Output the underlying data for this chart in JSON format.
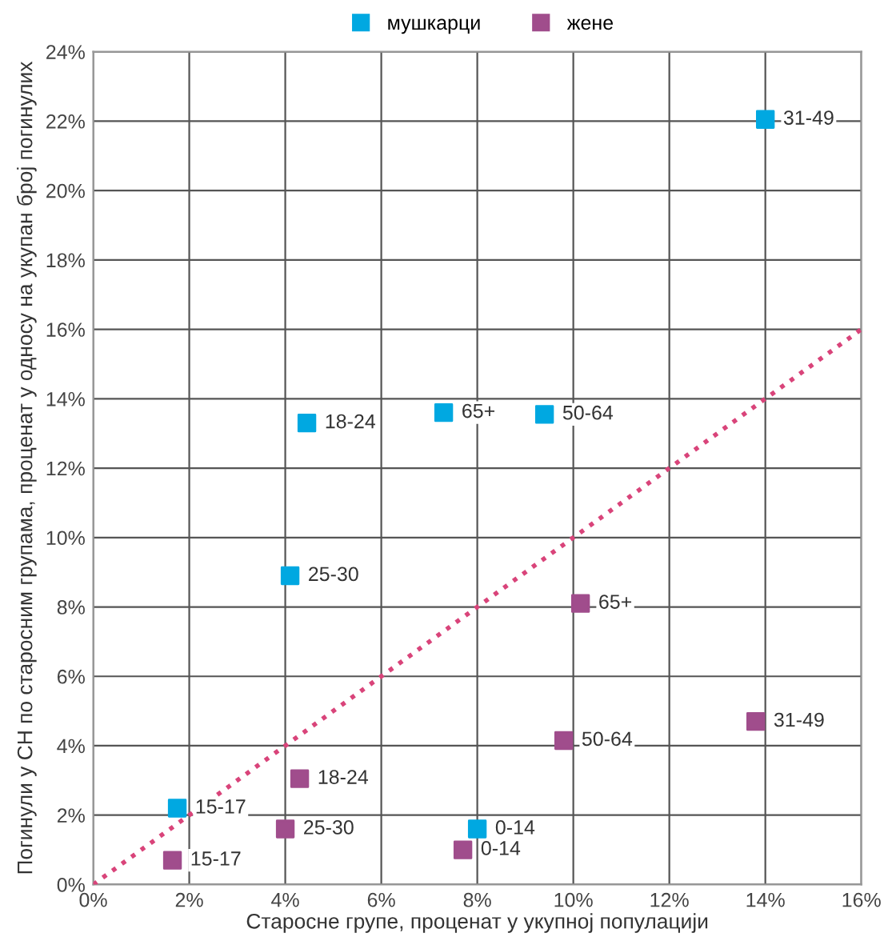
{
  "chart_data": {
    "type": "scatter",
    "xlabel": "Старосне групе, проценат у укупној популацији",
    "ylabel": "Погинули у СН по старосним групама, проценат у односу на укупан број погинулих",
    "series": [
      {
        "name": "мушкарци",
        "color": "#00a8e1",
        "marker": "square",
        "x": [
          1.75,
          4.1,
          4.45,
          7.3,
          9.4,
          14.0,
          8.0
        ],
        "values": [
          2.2,
          8.9,
          13.3,
          13.6,
          13.55,
          22.05,
          1.6
        ]
      },
      {
        "name": "жене",
        "color": "#a04d8c",
        "marker": "square",
        "x": [
          1.65,
          4.0,
          4.3,
          10.15,
          9.8,
          13.8,
          7.7
        ],
        "values": [
          0.7,
          1.6,
          3.05,
          8.1,
          4.15,
          4.7,
          1.0
        ]
      },
      {
        "type": "line",
        "color": "#d9447a",
        "line_style": "dotted",
        "marker": "none",
        "x": [
          0,
          16
        ],
        "values": [
          0,
          16
        ]
      }
    ],
    "annotations": [
      {
        "text": "15-17",
        "x": 1.75,
        "y": 2.2
      },
      {
        "text": "25-30",
        "x": 4.1,
        "y": 8.9
      },
      {
        "text": "18-24",
        "x": 4.45,
        "y": 13.3
      },
      {
        "text": "65+",
        "x": 7.3,
        "y": 13.6
      },
      {
        "text": "50-64",
        "x": 9.4,
        "y": 13.55
      },
      {
        "text": "31-49",
        "x": 14.0,
        "y": 22.05
      },
      {
        "text": "0-14",
        "x": 8.0,
        "y": 1.6
      },
      {
        "text": "15-17",
        "x": 1.65,
        "y": 0.7
      },
      {
        "text": "25-30",
        "x": 4.0,
        "y": 1.6
      },
      {
        "text": "18-24",
        "x": 4.3,
        "y": 3.05
      },
      {
        "text": "65+",
        "x": 10.15,
        "y": 8.1
      },
      {
        "text": "50-64",
        "x": 9.8,
        "y": 4.15
      },
      {
        "text": "31-49",
        "x": 13.8,
        "y": 4.7
      },
      {
        "text": "0-14",
        "x": 7.7,
        "y": 1.0
      }
    ],
    "xlim": [
      0,
      16
    ],
    "ylim": [
      0,
      24
    ],
    "xticks": [
      {
        "value": 0,
        "label": "0%"
      },
      {
        "value": 2,
        "label": "2%"
      },
      {
        "value": 4,
        "label": "4%"
      },
      {
        "value": 6,
        "label": "6%"
      },
      {
        "value": 8,
        "label": "8%"
      },
      {
        "value": 10,
        "label": "10%"
      },
      {
        "value": 12,
        "label": "12%"
      },
      {
        "value": 14,
        "label": "14%"
      },
      {
        "value": 16,
        "label": "16%"
      }
    ],
    "yticks": [
      {
        "value": 0,
        "label": "0%"
      },
      {
        "value": 2,
        "label": "2%"
      },
      {
        "value": 4,
        "label": "4%"
      },
      {
        "value": 6,
        "label": "6%"
      },
      {
        "value": 8,
        "label": "8%"
      },
      {
        "value": 10,
        "label": "10%"
      },
      {
        "value": 12,
        "label": "12%"
      },
      {
        "value": 14,
        "label": "14%"
      },
      {
        "value": 16,
        "label": "16%"
      },
      {
        "value": 18,
        "label": "18%"
      },
      {
        "value": 20,
        "label": "20%"
      },
      {
        "value": 22,
        "label": "22%"
      },
      {
        "value": 24,
        "label": "24%"
      }
    ],
    "grid": true,
    "legend": "top"
  }
}
